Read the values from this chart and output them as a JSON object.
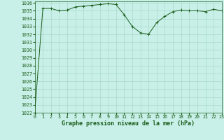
{
  "x": [
    0,
    1,
    2,
    3,
    4,
    5,
    6,
    7,
    8,
    9,
    10,
    11,
    12,
    13,
    14,
    15,
    16,
    17,
    18,
    19,
    20,
    21,
    22,
    23
  ],
  "y": [
    1022.0,
    1035.3,
    1035.3,
    1035.0,
    1035.1,
    1035.5,
    1035.6,
    1035.7,
    1035.8,
    1035.9,
    1035.8,
    1034.5,
    1033.0,
    1032.2,
    1032.0,
    1033.5,
    1034.3,
    1034.9,
    1035.1,
    1035.0,
    1035.0,
    1034.9,
    1035.2,
    1035.0
  ],
  "ylim": [
    1022,
    1036
  ],
  "xlim": [
    0,
    23
  ],
  "yticks": [
    1022,
    1023,
    1024,
    1025,
    1026,
    1027,
    1028,
    1029,
    1030,
    1031,
    1032,
    1033,
    1034,
    1035,
    1036
  ],
  "xticks": [
    0,
    1,
    2,
    3,
    4,
    5,
    6,
    7,
    8,
    9,
    10,
    11,
    12,
    13,
    14,
    15,
    16,
    17,
    18,
    19,
    20,
    21,
    22,
    23
  ],
  "line_color": "#1a5c1a",
  "marker_color": "#1a5c1a",
  "bg_color": "#c8f0e8",
  "grid_color": "#a8d8c8",
  "xlabel": "Graphe pression niveau de la mer (hPa)",
  "xlabel_fontsize": 6.0,
  "tick_fontsize": 4.8,
  "figsize": [
    3.2,
    2.0
  ],
  "dpi": 100
}
